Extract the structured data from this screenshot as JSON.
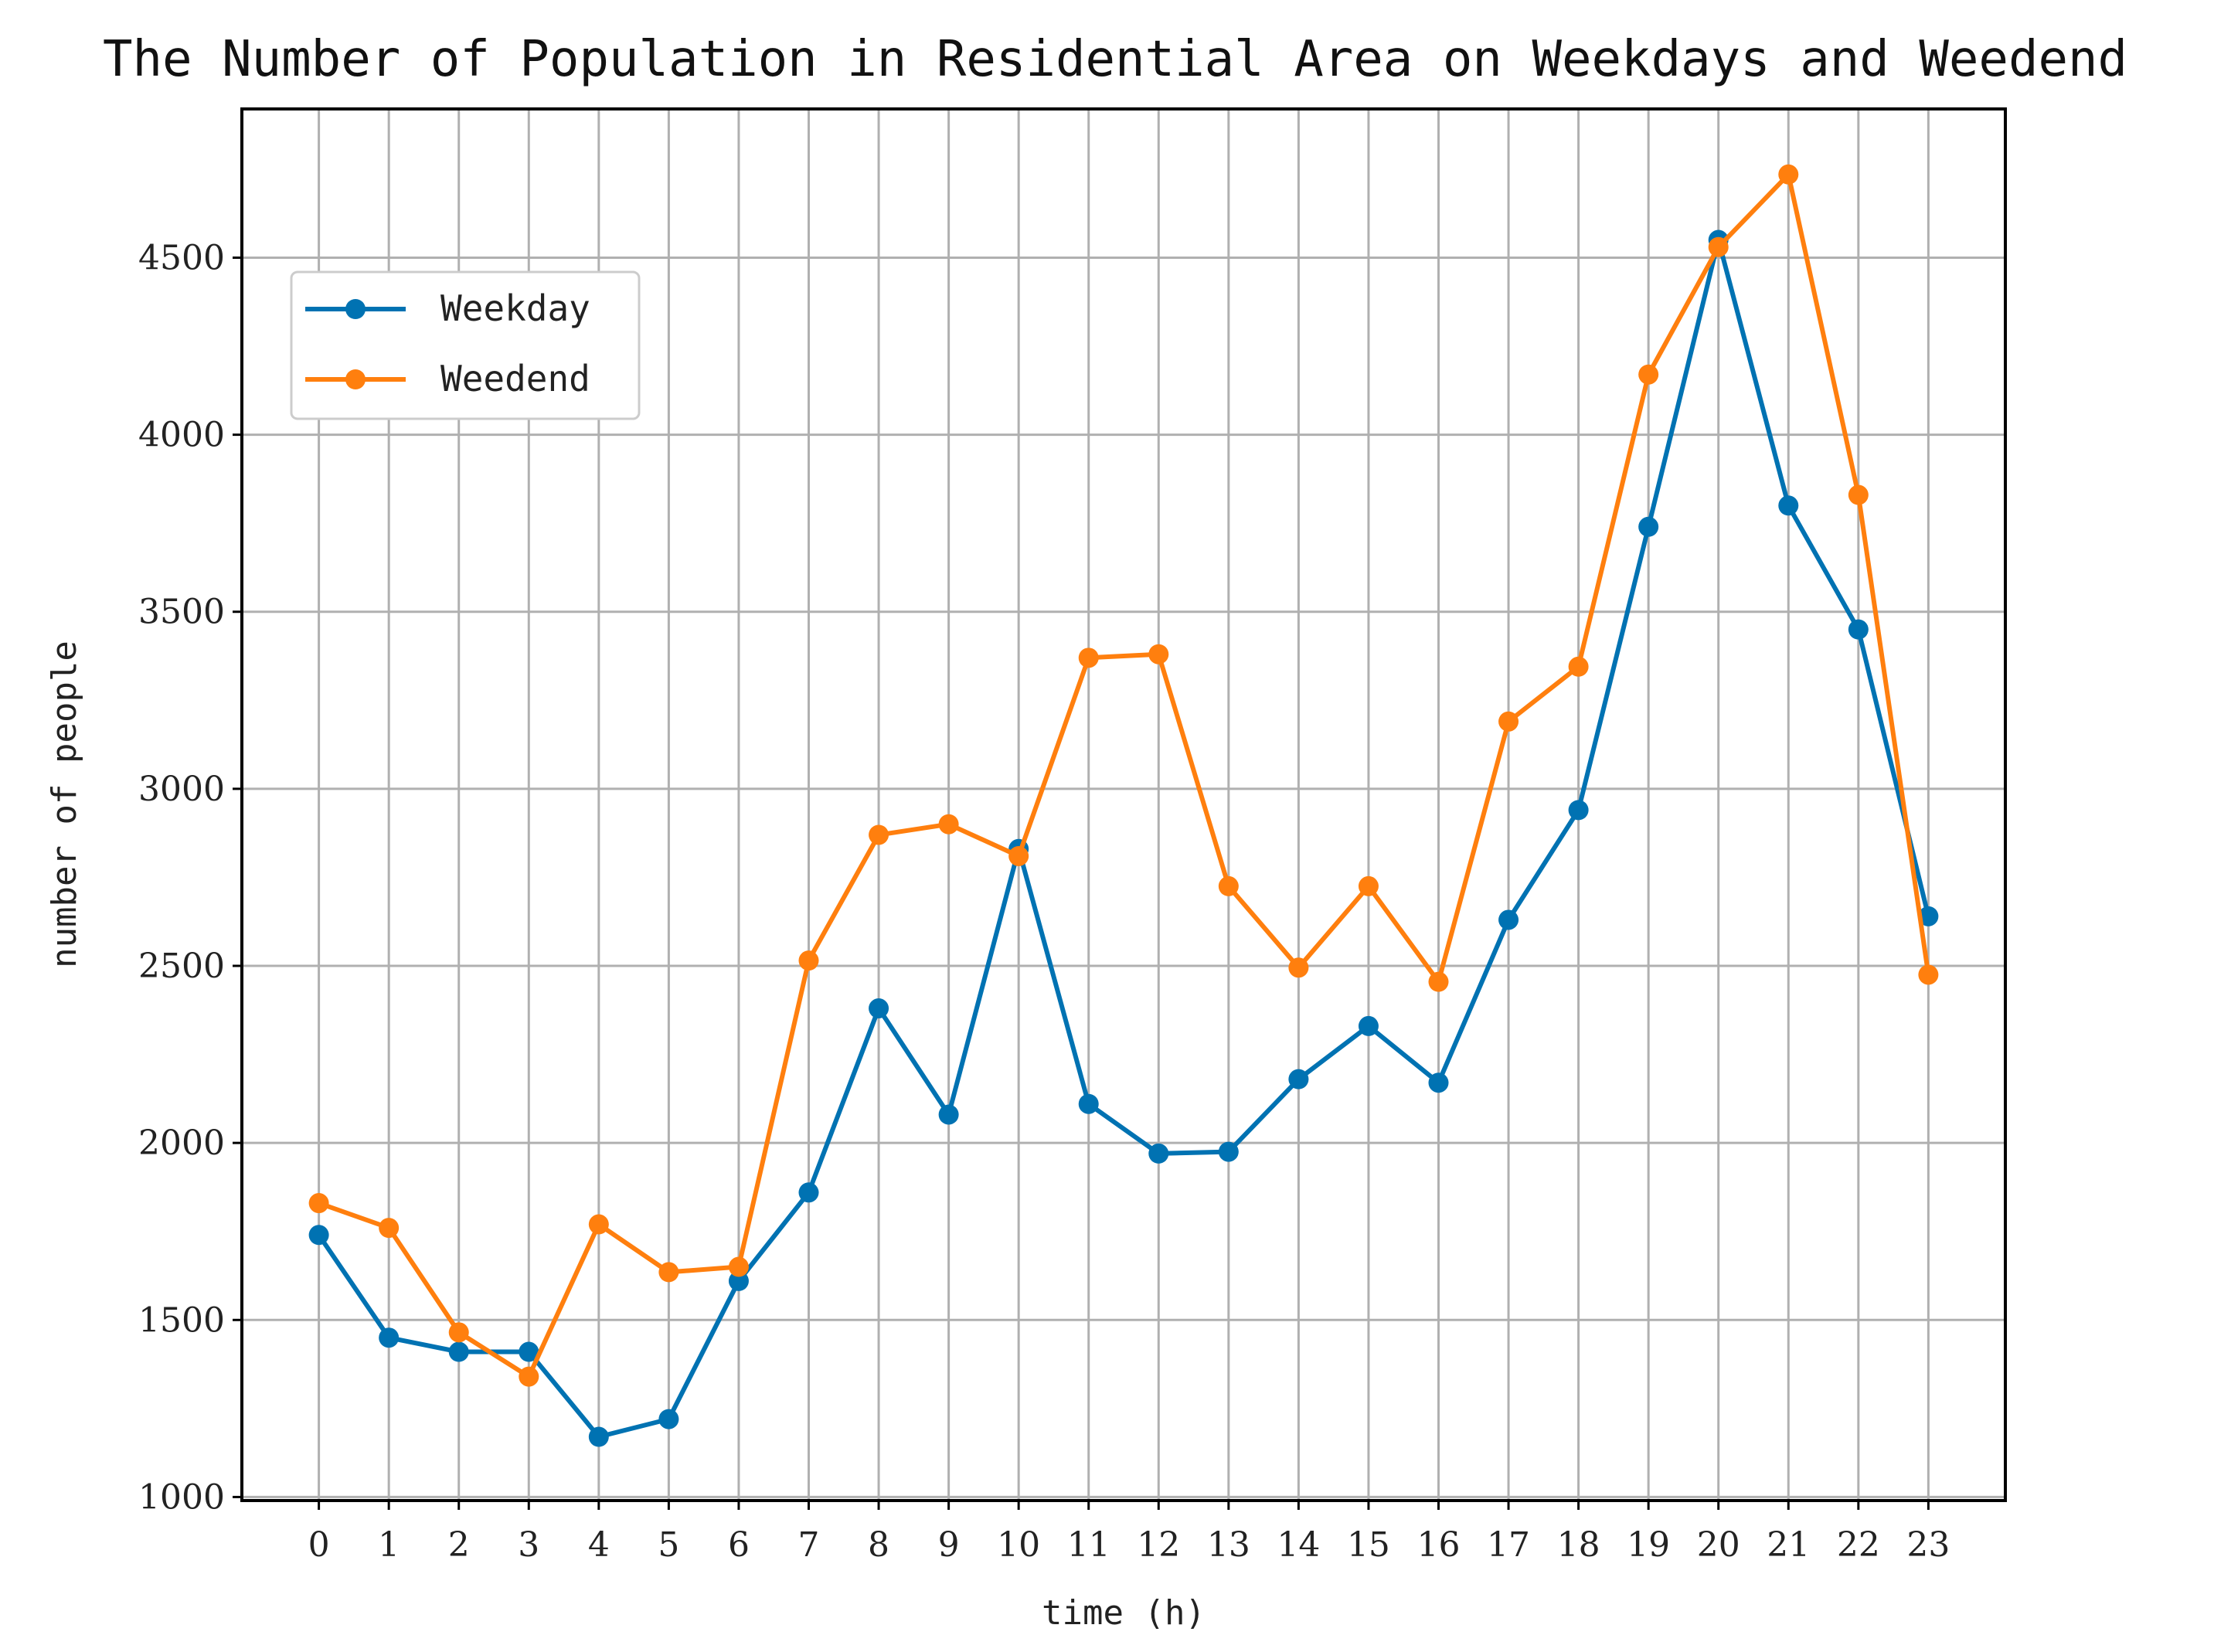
{
  "chart_data": {
    "type": "line",
    "title": "The Number of Population in Residential Area on Weekdays and Weedend",
    "xlabel": "time (h)",
    "ylabel": "number of people",
    "x": [
      0,
      1,
      2,
      3,
      4,
      5,
      6,
      7,
      8,
      9,
      10,
      11,
      12,
      13,
      14,
      15,
      16,
      17,
      18,
      19,
      20,
      21,
      22,
      23
    ],
    "xticks": [
      "0",
      "1",
      "2",
      "3",
      "4",
      "5",
      "6",
      "7",
      "8",
      "9",
      "10",
      "11",
      "12",
      "13",
      "14",
      "15",
      "16",
      "17",
      "18",
      "19",
      "20",
      "21",
      "22",
      "23"
    ],
    "yticks": [
      1000,
      1500,
      2000,
      2500,
      3000,
      3500,
      4000,
      4500
    ],
    "ylim": [
      990,
      4920
    ],
    "xlim": [
      -1.1,
      24.1
    ],
    "grid": true,
    "legend_position": "upper-left",
    "series": [
      {
        "name": "Weekday",
        "color": "#0072b2",
        "values": [
          1740,
          1450,
          1410,
          1410,
          1170,
          1220,
          1610,
          1860,
          2380,
          2080,
          2830,
          2110,
          1970,
          1975,
          2180,
          2330,
          2170,
          2630,
          2940,
          3740,
          4550,
          3800,
          3450,
          2640
        ]
      },
      {
        "name": "Weedend",
        "color": "#ff7f0e",
        "values": [
          1830,
          1760,
          1465,
          1340,
          1770,
          1635,
          1650,
          2515,
          2870,
          2900,
          2810,
          3370,
          3380,
          2725,
          2495,
          2725,
          2455,
          3190,
          3345,
          4170,
          4530,
          4735,
          3830,
          2475
        ]
      }
    ]
  }
}
